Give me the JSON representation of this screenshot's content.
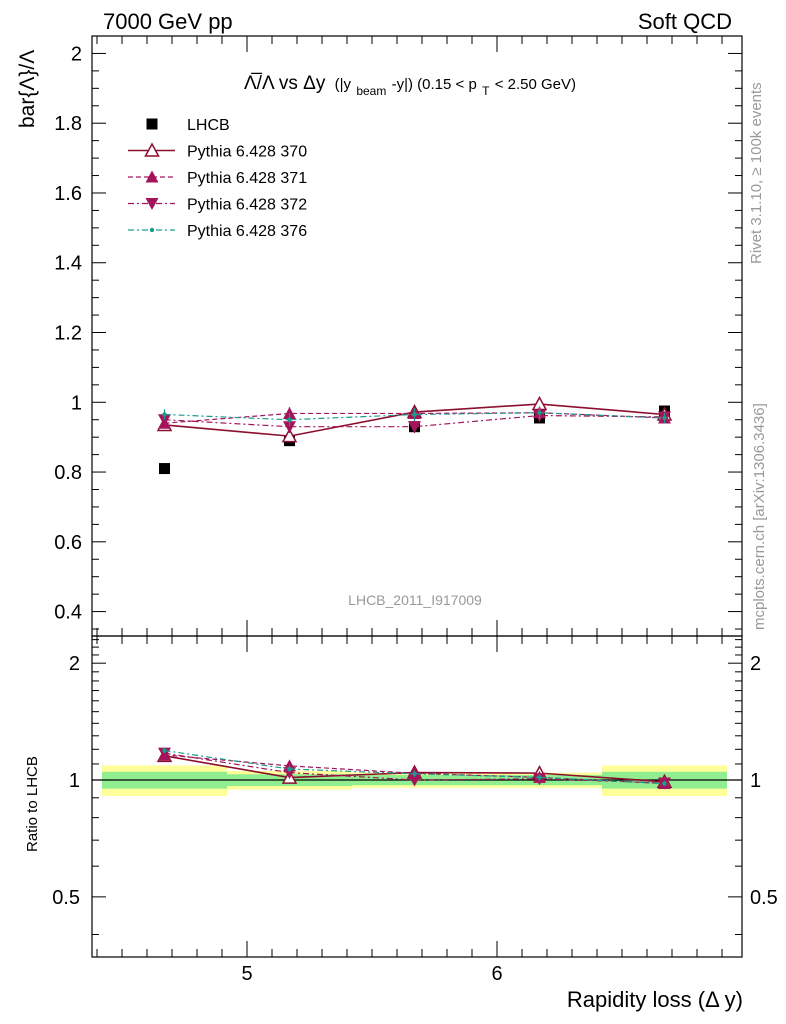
{
  "header": {
    "left": "7000 GeV pp",
    "right": "Soft QCD"
  },
  "side_labels": {
    "rivet": "Rivet 3.1.10, ≥ 100k events",
    "mcplots": "mcplots.cern.ch [arXiv:1306.3436]"
  },
  "watermark": "LHCB_2011_I917009",
  "chart_data": {
    "type": "scatter",
    "title": "Λ̅/Λ vs Δy (|y_beam-y|) (0.15 < p_T < 2.50 GeV)",
    "title_parts": {
      "main": "Λ̅/Λ vs Δy",
      "part1": "(|y",
      "sub1": "beam",
      "part2": "-y|) (0.15 < p",
      "sub2": "T",
      "part3": " < 2.50 GeV)"
    },
    "xlabel": "Rapidity loss (Δ y)",
    "ylabel": "bar{Λ}/Λ",
    "ratio_ylabel": "Ratio to LHCB",
    "xlim": [
      4.38,
      6.98
    ],
    "ylim": [
      0.33,
      2.05
    ],
    "ratio_ylim": [
      0.35,
      2.35
    ],
    "ratio_scale": "log",
    "x_ticks": [
      5,
      6
    ],
    "y_ticks": [
      0.4,
      0.6,
      0.8,
      1,
      1.2,
      1.4,
      1.6,
      1.8,
      2
    ],
    "ratio_ticks": [
      0.5,
      1,
      2
    ],
    "x": [
      4.67,
      5.17,
      5.67,
      6.17,
      6.67
    ],
    "x_edges": [
      4.42,
      4.92,
      5.42,
      5.92,
      6.42,
      6.92
    ],
    "legend_position": "top-left",
    "series": [
      {
        "name": "LHCB",
        "values": [
          0.81,
          0.89,
          0.93,
          0.955,
          0.975
        ],
        "errors": [
          0.01,
          0.01,
          0.01,
          0.01,
          0.01
        ],
        "color": "#000000",
        "marker": "square",
        "line": "none"
      },
      {
        "name": "Pythia 6.428 370",
        "values": [
          0.935,
          0.903,
          0.972,
          0.995,
          0.965
        ],
        "errors": [
          0.015,
          0.018,
          0.018,
          0.02,
          0.015
        ],
        "color": "#8b0f2e",
        "marker": "triangle-up-open",
        "line": "solid"
      },
      {
        "name": "Pythia 6.428 371",
        "values": [
          0.94,
          0.968,
          0.968,
          0.97,
          0.955
        ],
        "errors": [
          0.015,
          0.018,
          0.018,
          0.018,
          0.015
        ],
        "color": "#a3145a",
        "marker": "triangle-up",
        "line": "dashed"
      },
      {
        "name": "Pythia 6.428 372",
        "values": [
          0.95,
          0.93,
          0.93,
          0.962,
          0.958
        ],
        "errors": [
          0.015,
          0.018,
          0.018,
          0.018,
          0.015
        ],
        "color": "#a3145a",
        "marker": "triangle-down",
        "line": "dashdot"
      },
      {
        "name": "Pythia 6.428 376",
        "values": [
          0.965,
          0.95,
          0.965,
          0.97,
          0.955
        ],
        "errors": [
          0.015,
          0.018,
          0.018,
          0.018,
          0.015
        ],
        "color": "#1a9c8c",
        "marker": "dot",
        "line": "dashdot"
      }
    ],
    "ratio_bands": {
      "inner_color": "#90ee90",
      "outer_color": "#ffff99",
      "inner": [
        [
          0.95,
          1.05
        ],
        [
          0.965,
          1.035
        ],
        [
          0.97,
          1.03
        ],
        [
          0.97,
          1.03
        ],
        [
          0.95,
          1.05
        ]
      ],
      "outer": [
        [
          0.91,
          1.09
        ],
        [
          0.945,
          1.055
        ],
        [
          0.955,
          1.045
        ],
        [
          0.955,
          1.045
        ],
        [
          0.91,
          1.09
        ]
      ]
    }
  }
}
